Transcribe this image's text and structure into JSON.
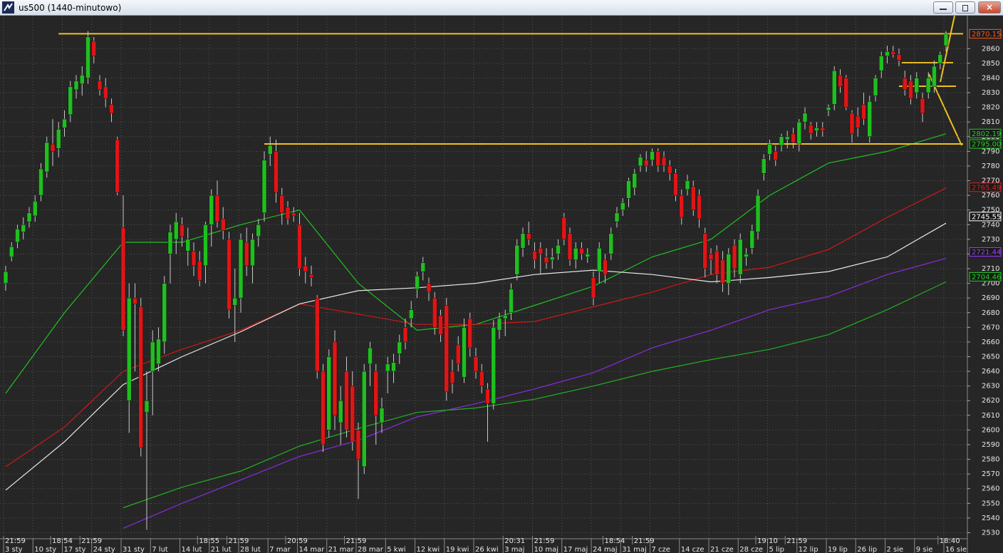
{
  "window_title": "us500 (1440-minutowo)",
  "chart_data": {
    "type": "candlestick",
    "grid": true,
    "up_color": "#1fbf1f",
    "down_color": "#e01515",
    "ylim": [
      2521,
      2882
    ],
    "yticks": [
      2530,
      2540,
      2550,
      2560,
      2570,
      2580,
      2590,
      2600,
      2610,
      2620,
      2630,
      2640,
      2650,
      2660,
      2670,
      2680,
      2690,
      2700,
      2710,
      2720,
      2730,
      2740,
      2750,
      2760,
      2770,
      2780,
      2790,
      2800,
      2810,
      2820,
      2830,
      2840,
      2850,
      2860
    ],
    "open": [
      2700,
      2718,
      2728,
      2735,
      2742,
      2746,
      2760,
      2776,
      2795,
      2792,
      2806,
      2815,
      2832,
      2836,
      2840,
      2865,
      2838,
      2834,
      2822,
      2798,
      2738,
      2620,
      2690,
      2684,
      2612,
      2640,
      2645,
      2660,
      2720,
      2730,
      2740,
      2722,
      2722,
      2715,
      2712,
      2740,
      2760,
      2744,
      2730,
      2685,
      2690,
      2728,
      2712,
      2732,
      2748,
      2788,
      2790,
      2760,
      2752,
      2748,
      2740,
      2712,
      2706,
      2690,
      2640,
      2600,
      2660,
      2605,
      2640,
      2630,
      2600,
      2575,
      2645,
      2640,
      2605,
      2640,
      2640,
      2652,
      2670,
      2676,
      2696,
      2708,
      2700,
      2690,
      2678,
      2685,
      2640,
      2658,
      2636,
      2676,
      2650,
      2640,
      2628,
      2618,
      2668,
      2676,
      2680,
      2706,
      2724,
      2734,
      2722,
      2724,
      2718,
      2716,
      2720,
      2745,
      2734,
      2716,
      2724,
      2718,
      2704,
      2708,
      2716,
      2720,
      2742,
      2750,
      2758,
      2765,
      2780,
      2784,
      2784,
      2790,
      2786,
      2780,
      2775,
      2760,
      2764,
      2766,
      2760,
      2734,
      2720,
      2722,
      2716,
      2700,
      2726,
      2706,
      2718,
      2724,
      2735,
      2775,
      2788,
      2790,
      2794,
      2798,
      2802,
      2795,
      2810,
      2808,
      2804,
      2806,
      2818,
      2822,
      2842,
      2840,
      2816,
      2814,
      2822,
      2800,
      2828,
      2845,
      2855,
      2858,
      2856,
      2840,
      2838,
      2830,
      2826,
      2830,
      2834,
      2850,
      2862
    ],
    "high": [
      2712,
      2728,
      2740,
      2745,
      2752,
      2760,
      2782,
      2800,
      2812,
      2810,
      2818,
      2838,
      2842,
      2848,
      2872,
      2868,
      2842,
      2840,
      2826,
      2800,
      2760,
      2700,
      2700,
      2690,
      2640,
      2668,
      2670,
      2705,
      2740,
      2748,
      2745,
      2738,
      2728,
      2722,
      2742,
      2764,
      2770,
      2752,
      2735,
      2710,
      2734,
      2738,
      2734,
      2744,
      2790,
      2800,
      2798,
      2765,
      2756,
      2752,
      2748,
      2718,
      2712,
      2692,
      2645,
      2655,
      2668,
      2630,
      2650,
      2640,
      2605,
      2645,
      2660,
      2645,
      2622,
      2650,
      2652,
      2665,
      2676,
      2688,
      2708,
      2718,
      2704,
      2694,
      2682,
      2690,
      2648,
      2664,
      2676,
      2680,
      2656,
      2645,
      2632,
      2675,
      2680,
      2682,
      2700,
      2730,
      2738,
      2742,
      2728,
      2728,
      2724,
      2724,
      2730,
      2748,
      2738,
      2728,
      2728,
      2724,
      2708,
      2728,
      2720,
      2738,
      2752,
      2758,
      2772,
      2778,
      2788,
      2790,
      2792,
      2792,
      2790,
      2784,
      2778,
      2764,
      2774,
      2770,
      2764,
      2738,
      2724,
      2726,
      2722,
      2724,
      2730,
      2734,
      2724,
      2740,
      2764,
      2788,
      2798,
      2794,
      2802,
      2804,
      2806,
      2812,
      2820,
      2810,
      2810,
      2810,
      2822,
      2848,
      2846,
      2842,
      2818,
      2820,
      2830,
      2828,
      2842,
      2858,
      2862,
      2862,
      2860,
      2845,
      2842,
      2844,
      2830,
      2844,
      2852,
      2858,
      2872
    ],
    "low": [
      2695,
      2715,
      2724,
      2730,
      2738,
      2742,
      2756,
      2772,
      2780,
      2786,
      2800,
      2810,
      2826,
      2828,
      2836,
      2850,
      2828,
      2820,
      2810,
      2760,
      2664,
      2598,
      2640,
      2582,
      2532,
      2610,
      2640,
      2652,
      2700,
      2720,
      2725,
      2712,
      2705,
      2698,
      2700,
      2725,
      2738,
      2730,
      2676,
      2660,
      2680,
      2705,
      2700,
      2725,
      2742,
      2780,
      2755,
      2740,
      2740,
      2742,
      2705,
      2700,
      2698,
      2635,
      2585,
      2595,
      2600,
      2590,
      2595,
      2586,
      2553,
      2570,
      2630,
      2590,
      2598,
      2625,
      2632,
      2645,
      2655,
      2670,
      2690,
      2702,
      2688,
      2665,
      2660,
      2620,
      2625,
      2640,
      2632,
      2650,
      2635,
      2625,
      2592,
      2614,
      2662,
      2664,
      2675,
      2702,
      2718,
      2726,
      2710,
      2706,
      2710,
      2710,
      2716,
      2726,
      2712,
      2710,
      2716,
      2714,
      2685,
      2700,
      2700,
      2716,
      2738,
      2746,
      2752,
      2760,
      2776,
      2776,
      2780,
      2776,
      2776,
      2770,
      2756,
      2740,
      2760,
      2746,
      2738,
      2704,
      2706,
      2700,
      2694,
      2692,
      2704,
      2700,
      2712,
      2720,
      2730,
      2770,
      2784,
      2780,
      2790,
      2792,
      2792,
      2790,
      2805,
      2798,
      2800,
      2800,
      2814,
      2818,
      2830,
      2818,
      2796,
      2800,
      2808,
      2796,
      2824,
      2840,
      2850,
      2854,
      2848,
      2828,
      2822,
      2826,
      2810,
      2826,
      2830,
      2846,
      2858
    ],
    "close": [
      2708,
      2725,
      2737,
      2740,
      2748,
      2756,
      2778,
      2796,
      2790,
      2805,
      2812,
      2834,
      2838,
      2842,
      2868,
      2855,
      2832,
      2826,
      2816,
      2762,
      2668,
      2690,
      2686,
      2588,
      2620,
      2660,
      2662,
      2700,
      2735,
      2742,
      2732,
      2730,
      2712,
      2702,
      2740,
      2760,
      2742,
      2736,
      2682,
      2690,
      2730,
      2712,
      2730,
      2740,
      2784,
      2794,
      2762,
      2748,
      2744,
      2746,
      2710,
      2708,
      2704,
      2640,
      2590,
      2650,
      2610,
      2620,
      2600,
      2592,
      2580,
      2640,
      2656,
      2610,
      2615,
      2645,
      2646,
      2660,
      2660,
      2682,
      2705,
      2714,
      2694,
      2670,
      2665,
      2626,
      2632,
      2645,
      2670,
      2656,
      2640,
      2630,
      2618,
      2670,
      2676,
      2678,
      2696,
      2726,
      2734,
      2730,
      2716,
      2720,
      2714,
      2718,
      2726,
      2730,
      2716,
      2724,
      2720,
      2720,
      2690,
      2724,
      2706,
      2734,
      2748,
      2755,
      2770,
      2775,
      2786,
      2780,
      2790,
      2780,
      2780,
      2775,
      2760,
      2745,
      2770,
      2750,
      2744,
      2710,
      2716,
      2706,
      2700,
      2720,
      2710,
      2730,
      2720,
      2736,
      2760,
      2785,
      2795,
      2784,
      2800,
      2800,
      2796,
      2810,
      2816,
      2802,
      2806,
      2804,
      2820,
      2845,
      2834,
      2820,
      2802,
      2806,
      2812,
      2824,
      2840,
      2855,
      2858,
      2856,
      2852,
      2832,
      2826,
      2840,
      2816,
      2840,
      2848,
      2856,
      2870
    ],
    "date_ticks": [
      {
        "value": 0,
        "label": "3 sty"
      },
      {
        "value": 5,
        "label": "10 sty"
      },
      {
        "value": 10,
        "label": "17 sty"
      },
      {
        "value": 15,
        "label": "24 sty"
      },
      {
        "value": 20,
        "label": "31 sty"
      },
      {
        "value": 25,
        "label": "7 lut"
      },
      {
        "value": 30,
        "label": "14 lut"
      },
      {
        "value": 35,
        "label": "21 lut"
      },
      {
        "value": 40,
        "label": "28 lut"
      },
      {
        "value": 45,
        "label": "7 mar"
      },
      {
        "value": 50,
        "label": "14 mar"
      },
      {
        "value": 55,
        "label": "21 mar"
      },
      {
        "value": 60,
        "label": "28 mar"
      },
      {
        "value": 65,
        "label": "5 kwi"
      },
      {
        "value": 70,
        "label": "12 kwi"
      },
      {
        "value": 75,
        "label": "19 kwi"
      },
      {
        "value": 80,
        "label": "26 kwi"
      },
      {
        "value": 85,
        "label": "3 maj"
      },
      {
        "value": 90,
        "label": "10 maj"
      },
      {
        "value": 95,
        "label": "17 maj"
      },
      {
        "value": 100,
        "label": "24 maj"
      },
      {
        "value": 105,
        "label": "31 maj"
      },
      {
        "value": 110,
        "label": "7 cze"
      },
      {
        "value": 115,
        "label": "14 cze"
      },
      {
        "value": 120,
        "label": "21 cze"
      },
      {
        "value": 125,
        "label": "28 cze"
      },
      {
        "value": 130,
        "label": "5 lip"
      },
      {
        "value": 135,
        "label": "12 lip"
      },
      {
        "value": 140,
        "label": "19 lip"
      },
      {
        "value": 145,
        "label": "26 lip"
      },
      {
        "value": 150,
        "label": "2 sie"
      },
      {
        "value": 155,
        "label": "9 sie"
      },
      {
        "value": 160,
        "label": "16 sie"
      }
    ],
    "time_ticks": [
      {
        "value": 0,
        "label": "21:59"
      },
      {
        "value": 8,
        "label": "18:54"
      },
      {
        "value": 13,
        "label": "21:59"
      },
      {
        "value": 33,
        "label": "18:55"
      },
      {
        "value": 38,
        "label": "21:59"
      },
      {
        "value": 48,
        "label": "20:59"
      },
      {
        "value": 58,
        "label": "21:59"
      },
      {
        "value": 85,
        "label": "20:31"
      },
      {
        "value": 90,
        "label": "21:59"
      },
      {
        "value": 102,
        "label": "18:54"
      },
      {
        "value": 107,
        "label": "21:59"
      },
      {
        "value": 128,
        "label": "19:10"
      },
      {
        "value": 133,
        "label": "21:59"
      },
      {
        "value": 159,
        "label": "18:40"
      }
    ],
    "overlays": {
      "x": [
        0,
        10,
        20,
        30,
        40,
        50,
        60,
        70,
        80,
        90,
        100,
        110,
        120,
        130,
        140,
        150,
        160
      ],
      "series": [
        {
          "color": "#22c022",
          "values": [
            2625,
            2680,
            2728,
            2728,
            2740,
            2750,
            2700,
            2668,
            2672,
            2685,
            2698,
            2718,
            2730,
            2760,
            2782,
            2790,
            2802
          ]
        },
        {
          "color": "#d01818",
          "values": [
            2575,
            2602,
            2640,
            2655,
            2668,
            2686,
            2679,
            2672,
            2672,
            2674,
            2684,
            2694,
            2706,
            2711,
            2723,
            2745,
            2765
          ]
        },
        {
          "color": "#e8e8e8",
          "values": [
            2559,
            2592,
            2631,
            2650,
            2667,
            2686,
            2695,
            2697,
            2700,
            2706,
            2709,
            2706,
            2701,
            2704,
            2708,
            2718,
            2741
          ]
        },
        {
          "color": "#8a2be2",
          "values": [
            null,
            null,
            2533,
            2550,
            2566,
            2582,
            2593,
            2609,
            2618,
            2628,
            2639,
            2656,
            2668,
            2682,
            2691,
            2706,
            2717
          ]
        },
        {
          "color": "#22b022",
          "values": [
            null,
            null,
            2547,
            2561,
            2572,
            2589,
            2601,
            2612,
            2615,
            2621,
            2630,
            2640,
            2648,
            2655,
            2665,
            2682,
            2701
          ]
        }
      ]
    },
    "levels": [
      {
        "value": 2870.15,
        "start": 9
      },
      {
        "value": 2795,
        "start": 44
      }
    ],
    "level_color": "#f0c020",
    "price_labels": [
      {
        "value": 2870.15,
        "color": "#ff5a1a"
      },
      {
        "value": 2802.19,
        "color": "#22d022"
      },
      {
        "value": 2795,
        "label": "2795.00",
        "color": "#22d022"
      },
      {
        "value": 2765.49,
        "color": "#e02020"
      },
      {
        "value": 2745.55,
        "color": "#ffffff"
      },
      {
        "value": 2721.44,
        "color": "#9a3cff"
      },
      {
        "value": 2704.46,
        "color": "#22d022"
      }
    ]
  }
}
